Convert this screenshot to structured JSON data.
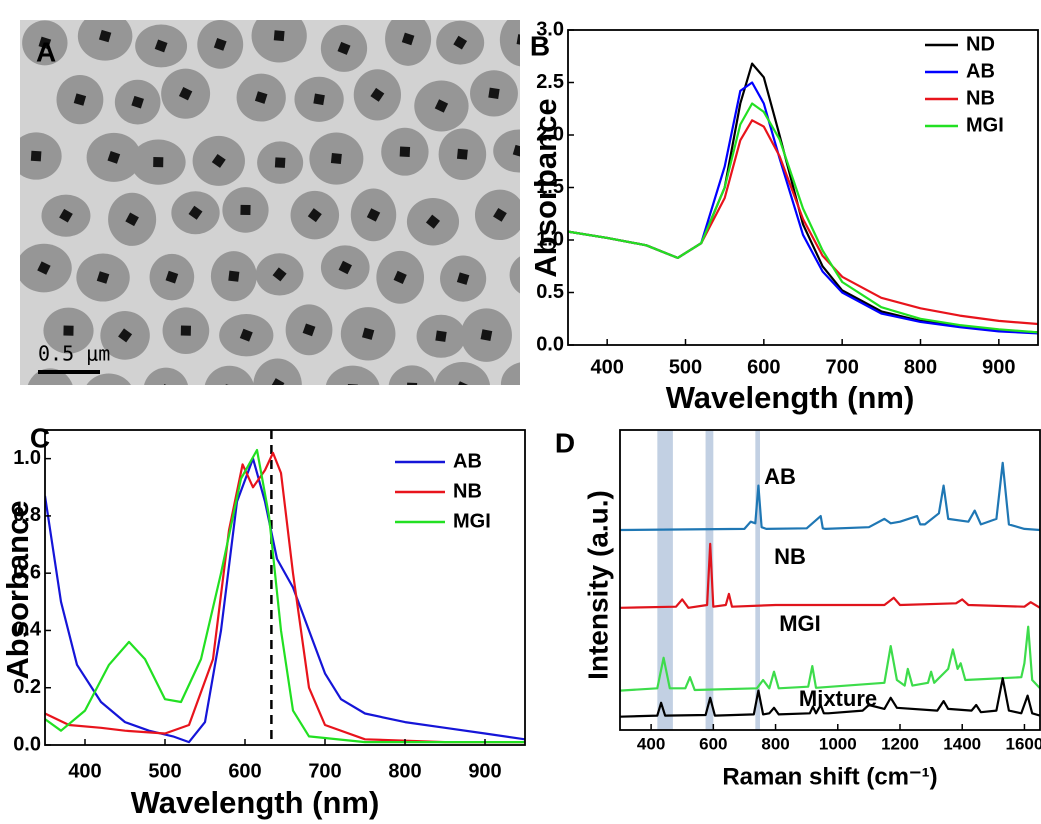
{
  "chart_data": [
    {
      "type": "image",
      "panel_label": "A",
      "scale_bar_label": "0.5 μm"
    },
    {
      "type": "line",
      "panel_label": "B",
      "xlabel": "Wavelength (nm)",
      "ylabel": "Absorbance",
      "xlim": [
        350,
        950
      ],
      "ylim": [
        0,
        3
      ],
      "xticks": [
        400,
        500,
        600,
        700,
        800,
        900
      ],
      "yticks": [
        {
          "value": 0,
          "label": "0.0"
        },
        {
          "value": 0.5,
          "label": "0.5"
        },
        {
          "value": 1,
          "label": "1.0"
        },
        {
          "value": 1.5,
          "label": "1.5"
        },
        {
          "value": 2,
          "label": "2.0"
        },
        {
          "value": 2.5,
          "label": "2.5"
        },
        {
          "value": 3,
          "label": "3.0"
        }
      ],
      "legend": "upper right",
      "x": [
        350,
        400,
        450,
        490,
        520,
        550,
        570,
        585,
        600,
        620,
        650,
        675,
        700,
        750,
        800,
        850,
        900,
        950
      ],
      "series": [
        {
          "name": "ND",
          "color": "#000000",
          "values": [
            1.08,
            1.02,
            0.95,
            0.83,
            0.97,
            1.5,
            2.3,
            2.68,
            2.55,
            2.0,
            1.15,
            0.75,
            0.52,
            0.32,
            0.23,
            0.18,
            0.14,
            0.12
          ]
        },
        {
          "name": "AB",
          "color": "#0000ff",
          "values": [
            1.08,
            1.02,
            0.95,
            0.83,
            0.97,
            1.7,
            2.42,
            2.5,
            2.3,
            1.78,
            1.05,
            0.7,
            0.5,
            0.3,
            0.22,
            0.17,
            0.13,
            0.11
          ]
        },
        {
          "name": "NB",
          "color": "#e8141c",
          "values": [
            1.08,
            1.02,
            0.95,
            0.83,
            0.97,
            1.4,
            1.95,
            2.14,
            2.08,
            1.8,
            1.2,
            0.85,
            0.65,
            0.45,
            0.35,
            0.28,
            0.23,
            0.2
          ]
        },
        {
          "name": "MGI",
          "color": "#22e022",
          "values": [
            1.08,
            1.02,
            0.95,
            0.83,
            0.97,
            1.5,
            2.1,
            2.3,
            2.22,
            1.96,
            1.3,
            0.9,
            0.6,
            0.36,
            0.25,
            0.19,
            0.15,
            0.12
          ]
        }
      ]
    },
    {
      "type": "line",
      "panel_label": "C",
      "xlabel": "Wavelength (nm)",
      "ylabel": "Absorbance",
      "xlim": [
        350,
        950
      ],
      "ylim": [
        0,
        1.1
      ],
      "xticks": [
        400,
        500,
        600,
        700,
        800,
        900
      ],
      "yticks": [
        {
          "value": 0,
          "label": "0.0"
        },
        {
          "value": 0.2,
          "label": "0.2"
        },
        {
          "value": 0.4,
          "label": "0.4"
        },
        {
          "value": 0.6,
          "label": "0.6"
        },
        {
          "value": 0.8,
          "label": "0.8"
        },
        {
          "value": 1,
          "label": "1.0"
        }
      ],
      "legend": "upper right",
      "reference_line": 633,
      "series": [
        {
          "name": "AB",
          "color": "#1515d8",
          "x": [
            350,
            370,
            390,
            420,
            450,
            480,
            510,
            530,
            550,
            570,
            590,
            610,
            625,
            640,
            660,
            680,
            700,
            720,
            750,
            800,
            850,
            900,
            950
          ],
          "values": [
            0.87,
            0.5,
            0.28,
            0.15,
            0.08,
            0.05,
            0.03,
            0.01,
            0.08,
            0.4,
            0.85,
            1.0,
            0.85,
            0.65,
            0.55,
            0.4,
            0.25,
            0.16,
            0.11,
            0.08,
            0.06,
            0.04,
            0.02
          ]
        },
        {
          "name": "NB",
          "color": "#e8141c",
          "x": [
            350,
            380,
            420,
            450,
            500,
            530,
            560,
            580,
            597,
            610,
            625,
            635,
            645,
            660,
            680,
            700,
            750,
            850,
            950
          ],
          "values": [
            0.11,
            0.07,
            0.06,
            0.05,
            0.04,
            0.07,
            0.3,
            0.75,
            0.98,
            0.9,
            0.96,
            1.02,
            0.95,
            0.6,
            0.2,
            0.07,
            0.02,
            0.01,
            0.01
          ]
        },
        {
          "name": "MGI",
          "color": "#22e022",
          "x": [
            350,
            370,
            400,
            430,
            455,
            475,
            500,
            520,
            545,
            570,
            595,
            615,
            630,
            645,
            660,
            680,
            750,
            950
          ],
          "values": [
            0.09,
            0.05,
            0.12,
            0.28,
            0.36,
            0.3,
            0.16,
            0.15,
            0.3,
            0.6,
            0.93,
            1.03,
            0.8,
            0.4,
            0.12,
            0.03,
            0.01,
            0.01
          ]
        }
      ]
    },
    {
      "type": "line",
      "panel_label": "D",
      "xlabel": "Raman shift (cm⁻¹)",
      "ylabel": "Intensity (a.u.)",
      "xlim": [
        300,
        1650
      ],
      "ylim": [
        0,
        5.4
      ],
      "xticks": [
        400,
        600,
        800,
        1000,
        1200,
        1400,
        1600
      ],
      "highlight_bands": [
        [
          420,
          470
        ],
        [
          575,
          600
        ],
        [
          735,
          750
        ]
      ],
      "series": [
        {
          "name": "AB",
          "color": "#1f77b4",
          "x": [
            300,
            700,
            720,
            735,
            745,
            755,
            770,
            900,
            945,
            952,
            960,
            1100,
            1150,
            1170,
            1200,
            1255,
            1265,
            1280,
            1325,
            1340,
            1355,
            1420,
            1440,
            1460,
            1510,
            1530,
            1550,
            1600,
            1650
          ],
          "values": [
            3.6,
            3.62,
            3.75,
            3.72,
            4.4,
            3.65,
            3.62,
            3.63,
            3.85,
            3.63,
            3.62,
            3.65,
            3.8,
            3.72,
            3.75,
            3.85,
            3.7,
            3.7,
            3.9,
            4.4,
            3.8,
            3.75,
            3.95,
            3.7,
            3.8,
            4.81,
            3.7,
            3.62,
            3.6
          ]
        },
        {
          "name": "NB",
          "color": "#e0141c",
          "x": [
            300,
            480,
            500,
            520,
            580,
            590,
            600,
            640,
            650,
            660,
            800,
            1150,
            1180,
            1200,
            1380,
            1400,
            1420,
            1600,
            1620,
            1650
          ],
          "values": [
            2.2,
            2.22,
            2.35,
            2.2,
            2.25,
            3.35,
            2.22,
            2.25,
            2.45,
            2.22,
            2.25,
            2.25,
            2.38,
            2.25,
            2.28,
            2.35,
            2.25,
            2.22,
            2.3,
            2.2
          ]
        },
        {
          "name": "MGI",
          "color": "#3ddc4b",
          "x": [
            300,
            420,
            440,
            460,
            510,
            525,
            540,
            740,
            760,
            780,
            795,
            810,
            905,
            918,
            930,
            1150,
            1170,
            1190,
            1215,
            1225,
            1240,
            1290,
            1300,
            1310,
            1355,
            1370,
            1385,
            1395,
            1410,
            1590,
            1600,
            1612,
            1625,
            1650
          ],
          "values": [
            0.71,
            0.75,
            1.3,
            0.75,
            0.75,
            0.95,
            0.72,
            0.75,
            0.9,
            0.75,
            1.05,
            0.75,
            0.78,
            1.15,
            0.76,
            0.85,
            1.51,
            0.9,
            0.8,
            1.1,
            0.8,
            0.85,
            1.05,
            0.85,
            1.1,
            1.45,
            1.1,
            1.2,
            0.9,
            0.95,
            1.2,
            1.86,
            0.9,
            0.75
          ]
        },
        {
          "name": "Mixture",
          "color": "#000000",
          "x": [
            300,
            420,
            432,
            445,
            575,
            590,
            605,
            730,
            745,
            760,
            780,
            795,
            810,
            910,
            920,
            930,
            945,
            955,
            970,
            1080,
            1100,
            1150,
            1170,
            1190,
            1320,
            1340,
            1355,
            1430,
            1445,
            1460,
            1510,
            1530,
            1550,
            1590,
            1610,
            1625,
            1650
          ],
          "values": [
            0.24,
            0.26,
            0.49,
            0.26,
            0.27,
            0.58,
            0.26,
            0.28,
            0.71,
            0.28,
            0.3,
            0.4,
            0.28,
            0.3,
            0.42,
            0.3,
            0.45,
            0.3,
            0.3,
            0.35,
            0.45,
            0.38,
            0.58,
            0.4,
            0.35,
            0.52,
            0.38,
            0.35,
            0.45,
            0.32,
            0.35,
            0.93,
            0.35,
            0.3,
            0.62,
            0.3,
            0.26
          ]
        }
      ]
    }
  ]
}
